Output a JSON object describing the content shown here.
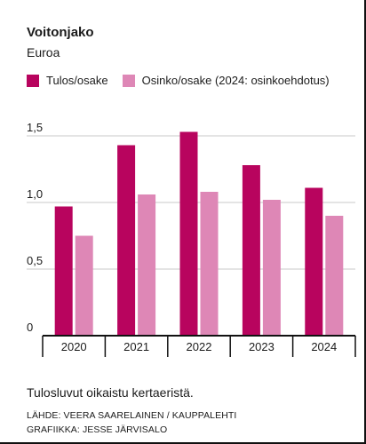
{
  "chart_data": {
    "type": "bar",
    "title": "Voitonjako",
    "subtitle": "Euroa",
    "categories": [
      "2020",
      "2021",
      "2022",
      "2023",
      "2024"
    ],
    "series": [
      {
        "name": "Tulos/osake",
        "color": "#b8045e",
        "values": [
          0.97,
          1.43,
          1.53,
          1.28,
          1.11
        ]
      },
      {
        "name": "Osinko/osake (2024: osinkoehdotus)",
        "color": "#de87b6",
        "values": [
          0.75,
          1.06,
          1.08,
          1.02,
          0.9
        ]
      }
    ],
    "ylim": [
      0,
      1.5
    ],
    "yticks": [
      {
        "value": 0,
        "label": "0"
      },
      {
        "value": 0.5,
        "label": "0,5"
      },
      {
        "value": 1.0,
        "label": "1,0"
      },
      {
        "value": 1.5,
        "label": "1,5"
      }
    ],
    "grid": true,
    "legend_position": "top-left",
    "xlabel": "",
    "ylabel": ""
  },
  "footer": {
    "note": "Tulosluvut oikaistu kertaeristä.",
    "source": "LÄHDE: VEERA SAARELAINEN / KAUPPALEHTI",
    "credit": "GRAFIIKKA: JESSE JÄRVISALO"
  }
}
